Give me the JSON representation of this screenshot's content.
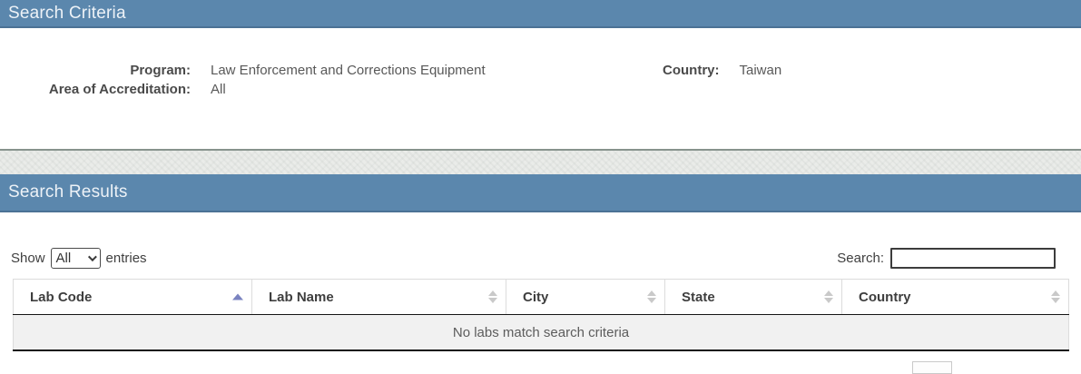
{
  "criteria": {
    "title": "Search Criteria",
    "program_label": "Program:",
    "program_value": "Law Enforcement and Corrections Equipment",
    "area_label": "Area of Accreditation:",
    "area_value": "All",
    "country_label": "Country:",
    "country_value": "Taiwan"
  },
  "results": {
    "title": "Search Results",
    "show_label": "Show",
    "entries_label": "entries",
    "length_selected": "All",
    "search_label": "Search:",
    "search_value": "",
    "table": {
      "columns": [
        {
          "label": "Lab Code",
          "sort": "ascending"
        },
        {
          "label": "Lab Name",
          "sort": "none"
        },
        {
          "label": "City",
          "sort": "none"
        },
        {
          "label": "State",
          "sort": "none"
        },
        {
          "label": "Country",
          "sort": "none"
        }
      ],
      "empty_message": "No labs match search criteria"
    }
  },
  "icons": {
    "entries_select_chevron": "chevron-down-icon",
    "sort_active": "sort-ascending-icon",
    "sort_inactive": "sort-both-icon"
  },
  "colors": {
    "header_bar_blue": "#5b87ad",
    "header_bar_border": "#4b7295",
    "header_bar_text": "#edf2f7",
    "divider_band": "#eaece9",
    "divider_band_line": "#87938d",
    "sort_arrow_active": "#7a83c0",
    "sort_arrow_inactive": "#c9c9c9",
    "empty_row_bg": "#f1f1f1",
    "table_dark_border": "#151515"
  }
}
